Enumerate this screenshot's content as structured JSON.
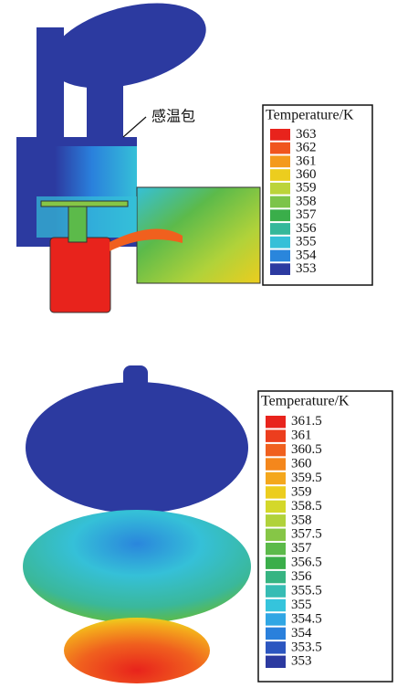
{
  "figures": [
    {
      "annotation": "感温包",
      "legend": {
        "title": "Temperature/K",
        "labels": [
          363,
          362,
          361,
          360,
          359,
          358,
          357,
          356,
          355,
          354,
          353
        ],
        "colors": [
          "#e8231c",
          "#f0551e",
          "#f49a1c",
          "#eccd1e",
          "#bcd43a",
          "#7cc44a",
          "#3aae4a",
          "#35b89a",
          "#35c0d8",
          "#2a86dc",
          "#2c3aa0"
        ]
      }
    },
    {
      "legend": {
        "title": "Temperature/K",
        "labels": [
          361.5,
          361,
          360.5,
          360,
          359.5,
          359,
          358.5,
          358,
          357.5,
          357,
          356.5,
          356,
          355.5,
          355,
          354.5,
          354,
          353.5,
          353
        ],
        "colors": [
          "#e8231c",
          "#ec3e1e",
          "#f0601e",
          "#f4871c",
          "#f4a71c",
          "#eccd1e",
          "#d4d82a",
          "#b0d23a",
          "#86c646",
          "#5cba4a",
          "#3aae4a",
          "#36b482",
          "#36bcb4",
          "#35c4dc",
          "#30a6e4",
          "#2a80dc",
          "#2c56c0",
          "#2c3aa0"
        ]
      }
    }
  ]
}
